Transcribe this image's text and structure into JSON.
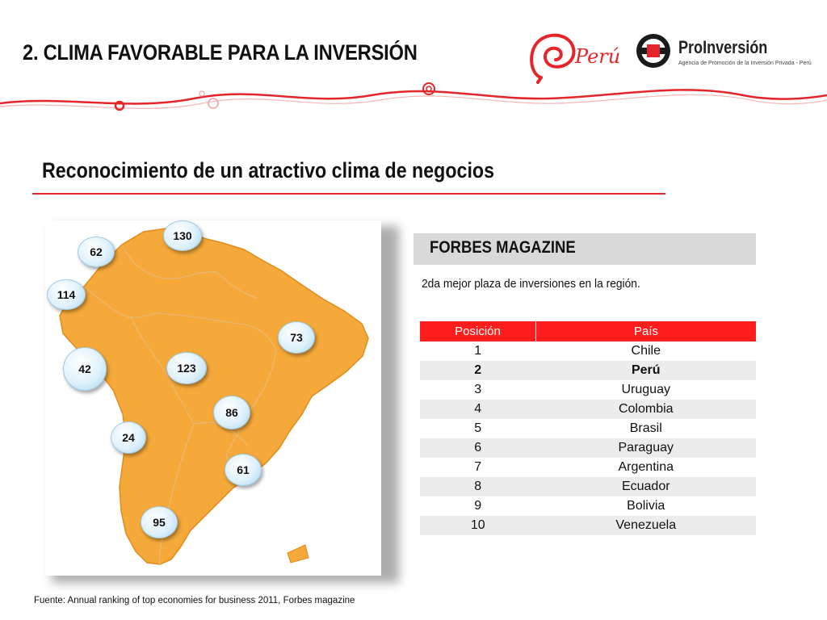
{
  "header": {
    "title": "2.  CLIMA FAVORABLE PARA LA INVERSIÓN",
    "peru_logo_text": "Perú",
    "proinversion_name": "ProInversión",
    "proinversion_subtitle": "Agencia de Promoción de la Inversión Privada - Perú"
  },
  "colors": {
    "accent_red": "#e4262a",
    "table_header": "#ff1d1d",
    "map_fill": "#f5a93a"
  },
  "section": {
    "heading": "Reconocimiento de un atractivo clima de negocios"
  },
  "map": {
    "bubbles": [
      {
        "id": "colombia",
        "value": "62"
      },
      {
        "id": "venezuela",
        "value": "130"
      },
      {
        "id": "ecuador",
        "value": "114"
      },
      {
        "id": "peru",
        "value": "42"
      },
      {
        "id": "bolivia",
        "value": "123"
      },
      {
        "id": "brasil",
        "value": "73"
      },
      {
        "id": "paraguay",
        "value": "86"
      },
      {
        "id": "chile",
        "value": "24"
      },
      {
        "id": "uruguay",
        "value": "61"
      },
      {
        "id": "argentina",
        "value": "95"
      }
    ]
  },
  "forbes": {
    "title": "FORBES MAGAZINE",
    "description": "2da mejor plaza de inversiones en la región."
  },
  "table": {
    "headers": [
      "Posición",
      "País"
    ],
    "rows": [
      [
        "1",
        "Chile"
      ],
      [
        "2",
        "Perú"
      ],
      [
        "3",
        "Uruguay"
      ],
      [
        "4",
        "Colombia"
      ],
      [
        "5",
        "Brasil"
      ],
      [
        "6",
        "Paraguay"
      ],
      [
        "7",
        "Argentina"
      ],
      [
        "8",
        "Ecuador"
      ],
      [
        "9",
        "Bolivia"
      ],
      [
        "10",
        "Venezuela"
      ]
    ]
  },
  "footer": {
    "source": "Fuente: Annual ranking of top economies for business 2011, Forbes magazine"
  }
}
